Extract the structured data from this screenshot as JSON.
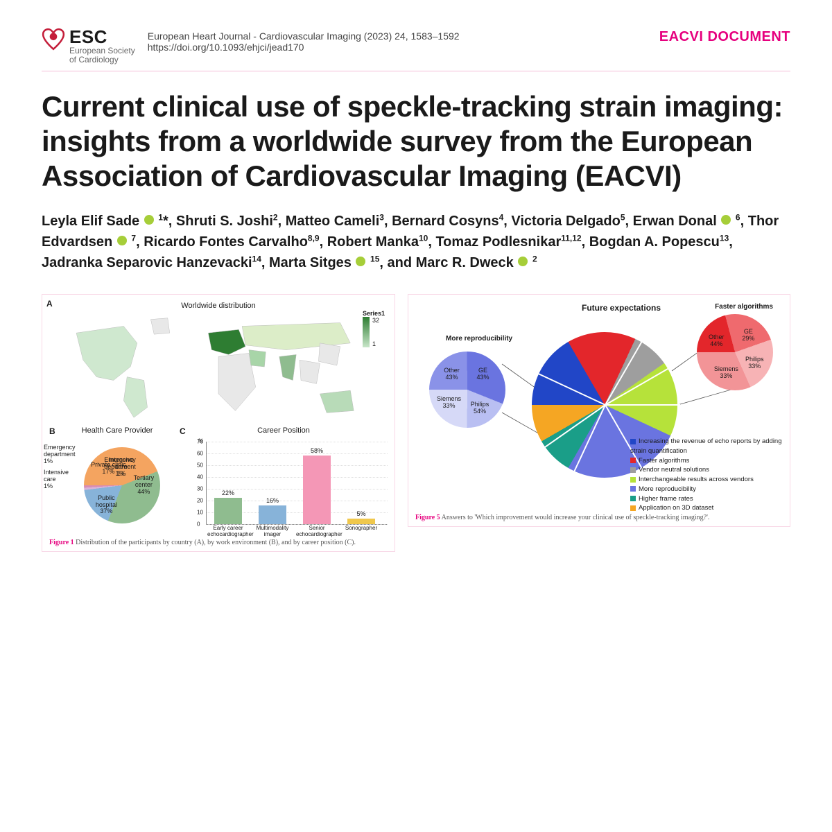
{
  "header": {
    "logo_main": "ESC",
    "logo_sub1": "European Society",
    "logo_sub2": "of Cardiology",
    "journal_line": "European Heart Journal - Cardiovascular Imaging (2023) 24, 1583–1592",
    "doi_line": "https://doi.org/10.1093/ehjci/jead170",
    "doc_type": "EACVI DOCUMENT",
    "accent_color": "#e6007e",
    "logo_color": "#c41e3a"
  },
  "title": "Current clinical use of speckle-tracking strain imaging: insights from a worldwide survey from the European Association of Cardiovascular Imaging (EACVI)",
  "authors_html": "Leyla Elif Sade <span class='orcid'></span> <sup>1</sup>*, Shruti S. Joshi<sup>2</sup>, Matteo Cameli<sup>3</sup>, Bernard Cosyns<sup>4</sup>, Victoria Delgado<sup>5</sup>, Erwan Donal <span class='orcid'></span> <sup>6</sup>, Thor Edvardsen <span class='orcid'></span> <sup>7</sup>, Ricardo Fontes Carvalho<sup>8,9</sup>, Robert Manka<sup>10</sup>, Tomaz Podlesnikar<sup>11,12</sup>, Bogdan A. Popescu<sup>13</sup>, Jadranka Separovic Hanzevacki<sup>14</sup>, Marta Sitges <span class='orcid'></span> <sup>15</sup>, and Marc R. Dweck <span class='orcid'></span> <sup>2</sup>",
  "fig1": {
    "panelA_label": "A",
    "panelA_title": "Worldwide distribution",
    "map_legend_title": "Series1",
    "map_legend_max": "32",
    "map_legend_min": "1",
    "map_high_color": "#2e7d32",
    "map_low_color": "#dcedc8",
    "map_nodata_color": "#e8e8e8",
    "panelB_label": "B",
    "panelB_title": "Health Care Provider",
    "hcp_pie": {
      "slices": [
        {
          "label": "Tertiary center",
          "pct": 44,
          "color": "#f4a460"
        },
        {
          "label": "Public hospital",
          "pct": 37,
          "color": "#8fbc8f"
        },
        {
          "label": "Private clinic",
          "pct": 17,
          "color": "#87b3d9"
        },
        {
          "label": "Emergency department",
          "pct": 1,
          "color": "#d9b3d9"
        },
        {
          "label": "Intensive care",
          "pct": 1,
          "color": "#d98cb3"
        }
      ]
    },
    "panelC_label": "C",
    "panelC_title": "Career Position",
    "career_bar": {
      "y_max": 70,
      "y_step": 10,
      "y_unit": "%",
      "bars": [
        {
          "cat": "Early career echocardiographer",
          "val": 22,
          "color": "#8fbc8f"
        },
        {
          "cat": "Multimodality imager",
          "val": 16,
          "color": "#87b3d9"
        },
        {
          "cat": "Senior echocardiographer",
          "val": 58,
          "color": "#f497b6"
        },
        {
          "cat": "Sonographer",
          "val": 5,
          "color": "#f0c84c"
        }
      ]
    },
    "caption_num": "Figure 1",
    "caption_text": "Distribution of the participants by country (A), by work environment (B), and by career position (C)."
  },
  "fig5": {
    "title": "Future expectations",
    "main_pie": {
      "slices": [
        {
          "label": "Increasing the revenue of echo reports by adding strain quantification",
          "color": "#2146c7"
        },
        {
          "label": "Faster algorithms",
          "color": "#e3262b"
        },
        {
          "label": "Vendor neutral solutions",
          "color": "#9e9e9e"
        },
        {
          "label": "Interchangeable results across vendors",
          "color": "#b6e23a"
        },
        {
          "label": "More reproducibility",
          "color": "#6a74e0"
        },
        {
          "label": "Higher frame rates",
          "color": "#1a9e88"
        },
        {
          "label": "Application on 3D dataset",
          "color": "#f5a623"
        }
      ],
      "angles_deg": [
        60,
        55,
        30,
        60,
        95,
        30,
        30
      ]
    },
    "sub_repro": {
      "title": "More reproducibility",
      "slices": [
        {
          "label": "GE",
          "pct": 43,
          "color": "#8a92e8"
        },
        {
          "label": "Philips",
          "pct": 54,
          "color": "#6a74e0"
        },
        {
          "label": "Siemens",
          "pct": 33,
          "color": "#b9bff2"
        },
        {
          "label": "Other",
          "pct": 43,
          "color": "#d6d9f7"
        }
      ]
    },
    "sub_fast": {
      "title": "Faster algorithms",
      "slices": [
        {
          "label": "GE",
          "pct": 29,
          "color": "#e3262b"
        },
        {
          "label": "Philips",
          "pct": 33,
          "color": "#ef6a6e"
        },
        {
          "label": "Siemens",
          "pct": 33,
          "color": "#f7b3b5"
        },
        {
          "label": "Other",
          "pct": 44,
          "color": "#f29497"
        }
      ]
    },
    "caption_num": "Figure 5",
    "caption_text": "Answers to 'Which improvement would increase your clinical use of speckle-tracking imaging?'."
  }
}
